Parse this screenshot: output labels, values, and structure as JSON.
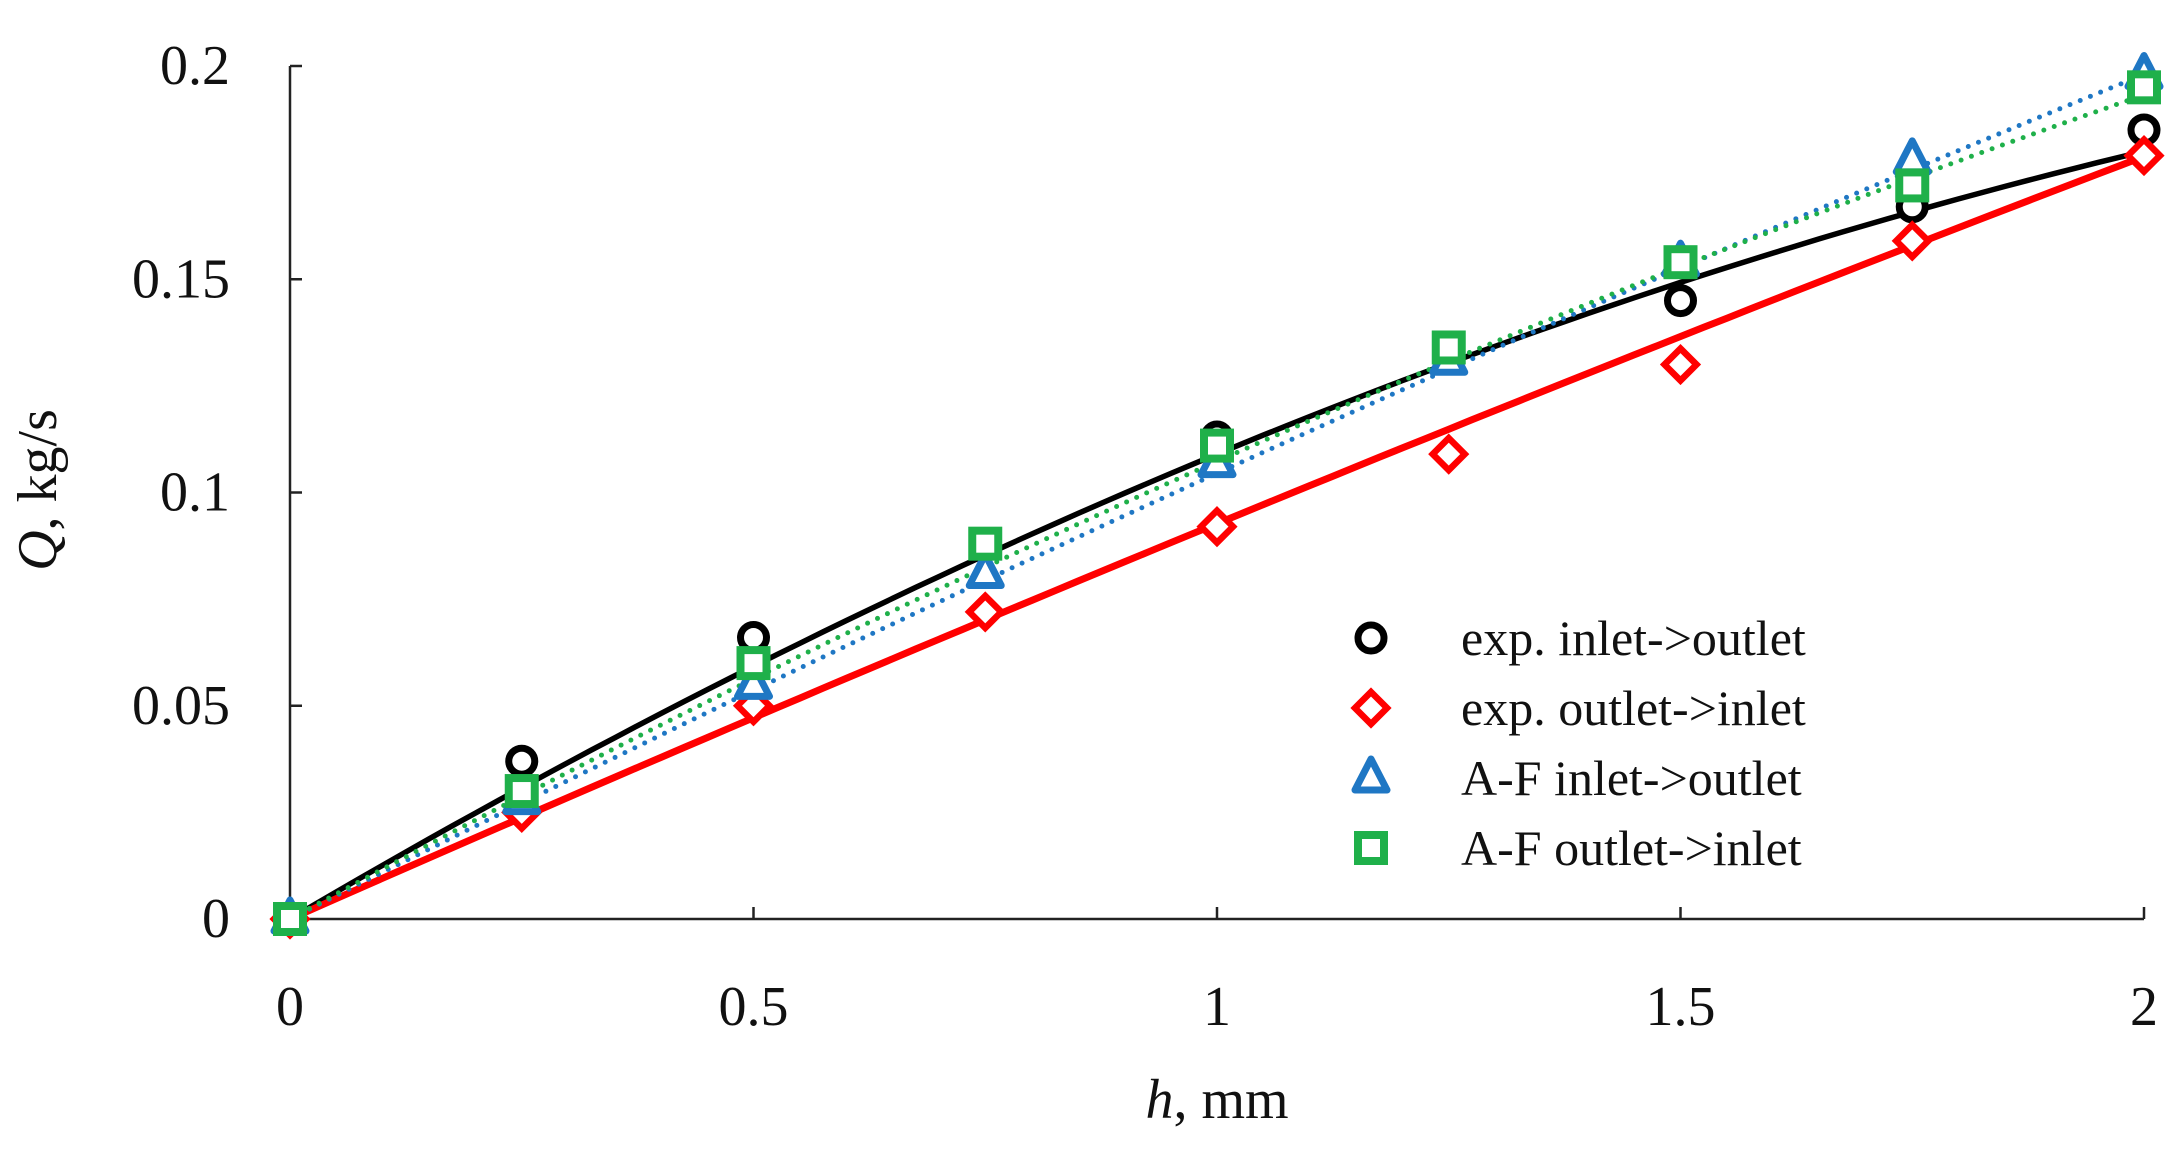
{
  "chart_data": {
    "type": "scatter",
    "title": "",
    "xlabel": {
      "var": "h",
      "unit": ", mm"
    },
    "ylabel": {
      "var": "Q",
      "unit": ", kg/s"
    },
    "xlim": [
      0,
      2
    ],
    "ylim": [
      0,
      0.2
    ],
    "x_ticks": [
      0,
      0.5,
      1,
      1.5,
      2
    ],
    "x_tick_labels": [
      "0",
      "0.5",
      "1",
      "1.5",
      "2"
    ],
    "y_ticks": [
      0,
      0.05,
      0.1,
      0.15,
      0.2
    ],
    "y_tick_labels": [
      "0",
      "0.05",
      "0.1",
      "0.15",
      "0.2"
    ],
    "grid": false,
    "legend_position": "bottom-right",
    "series": [
      {
        "name": "exp. inlet->outlet",
        "marker": "circle",
        "color": "#000000",
        "x": [
          0,
          0.25,
          0.5,
          0.75,
          1.0,
          1.25,
          1.5,
          1.75,
          2.0
        ],
        "y": [
          0,
          0.037,
          0.066,
          0.088,
          0.113,
          0.133,
          0.145,
          0.167,
          0.185
        ],
        "trend": {
          "style": "solid",
          "coeffs": [
            0.128,
            -0.019
          ]
        }
      },
      {
        "name": "exp. outlet->inlet",
        "marker": "diamond",
        "color": "#ff0000",
        "x": [
          0,
          0.25,
          0.5,
          0.75,
          1.0,
          1.25,
          1.5,
          1.75,
          2.0
        ],
        "y": [
          0,
          0.025,
          0.05,
          0.072,
          0.092,
          0.109,
          0.13,
          0.159,
          0.179
        ],
        "trend": {
          "style": "solid",
          "coeffs": [
            0.096,
            -0.0033
          ]
        }
      },
      {
        "name": "A-F inlet->outlet",
        "marker": "triangle",
        "color": "#1f77c4",
        "x": [
          0,
          0.25,
          0.5,
          0.75,
          1.0,
          1.25,
          1.5,
          1.75,
          2.0
        ],
        "y": [
          0,
          0.028,
          0.055,
          0.081,
          0.107,
          0.131,
          0.154,
          0.178,
          0.198
        ],
        "trend": {
          "style": "dotted",
          "coeffs": [
            0.11,
            -0.0055
          ]
        }
      },
      {
        "name": "A-F outlet->inlet",
        "marker": "square",
        "color": "#1fb04a",
        "x": [
          0,
          0.25,
          0.5,
          0.75,
          1.0,
          1.25,
          1.5,
          1.75,
          2.0
        ],
        "y": [
          0,
          0.03,
          0.06,
          0.088,
          0.111,
          0.134,
          0.154,
          0.172,
          0.195
        ],
        "trend": {
          "style": "dotted",
          "coeffs": [
            0.118,
            -0.0107
          ]
        }
      }
    ]
  }
}
